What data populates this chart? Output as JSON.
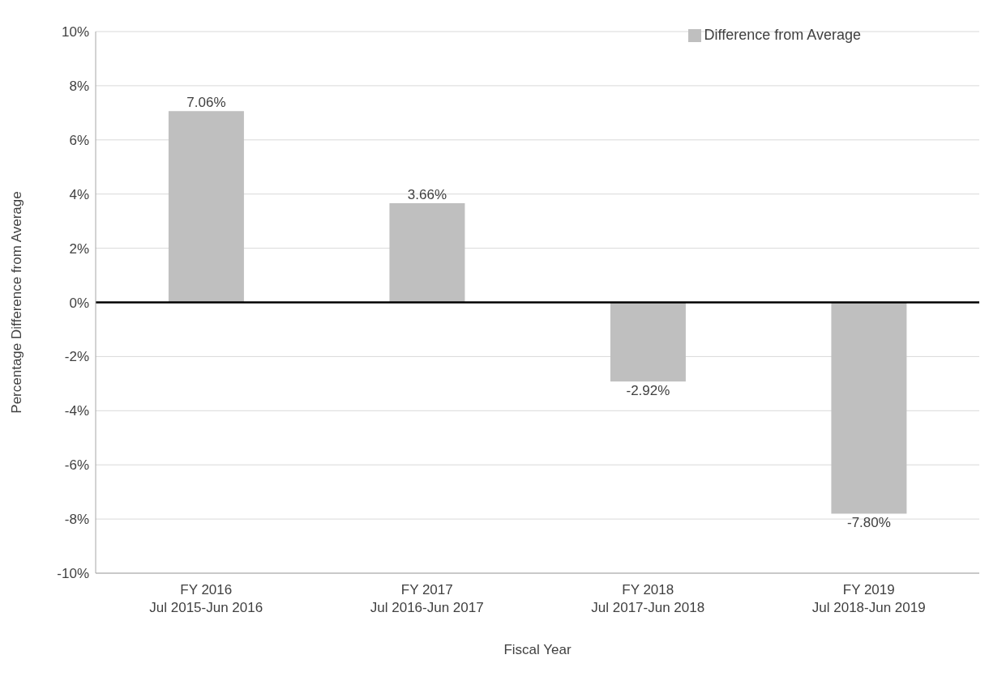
{
  "chart_data": {
    "type": "bar",
    "xlabel": "Fiscal Year",
    "ylabel": "Percentage Difference from Average",
    "categories": [
      "FY 2016\nJul 2015-Jun 2016",
      "FY 2017\nJul 2016-Jun 2017",
      "FY 2018\nJul 2017-Jun 2018",
      "FY 2019\nJul 2018-Jun 2019"
    ],
    "series": [
      {
        "name": "Difference from Average",
        "color": "#bfbfbf",
        "values": [
          7.06,
          3.66,
          -2.92,
          -7.8
        ],
        "value_labels": [
          "7.06%",
          "3.66%",
          "-2.92%",
          "-7.80%"
        ]
      }
    ],
    "ylim": [
      -10,
      10
    ],
    "yticks": [
      {
        "value": -10,
        "label": "-10%"
      },
      {
        "value": -8,
        "label": "-8%"
      },
      {
        "value": -6,
        "label": "-6%"
      },
      {
        "value": -4,
        "label": "-4%"
      },
      {
        "value": -2,
        "label": "-2%"
      },
      {
        "value": 0,
        "label": "0%"
      },
      {
        "value": 2,
        "label": "2%"
      },
      {
        "value": 4,
        "label": "4%"
      },
      {
        "value": 6,
        "label": "6%"
      },
      {
        "value": 8,
        "label": "8%"
      },
      {
        "value": 10,
        "label": "10%"
      }
    ],
    "ref_lines": [
      {
        "axis": "y",
        "value": 0,
        "color": "#000000"
      }
    ],
    "grid": "y",
    "legend": "top right"
  }
}
